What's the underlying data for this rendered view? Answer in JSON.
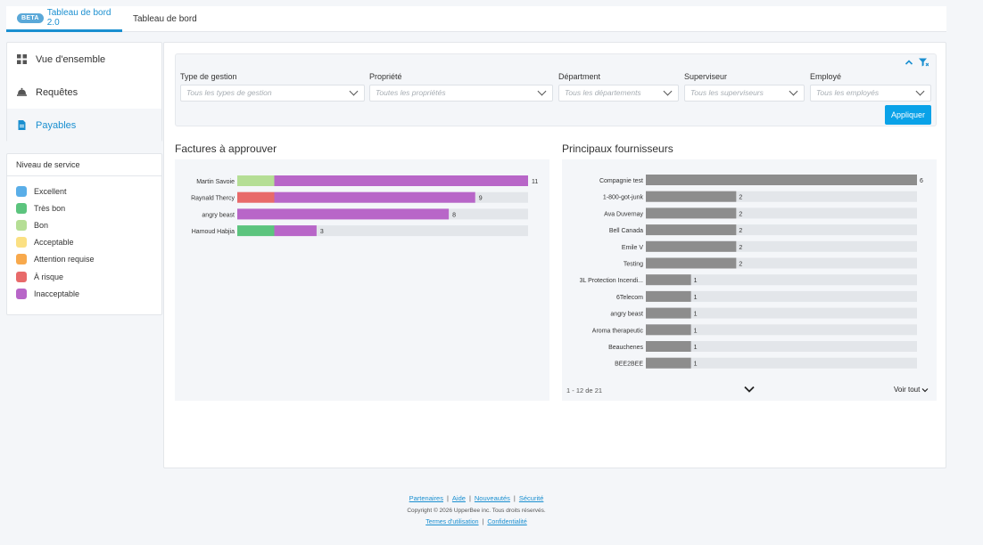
{
  "tabs": [
    {
      "badge": "BETA",
      "label": "Tableau de bord 2.0"
    },
    {
      "label": "Tableau de bord"
    }
  ],
  "nav": {
    "items": [
      {
        "label": "Vue d'ensemble",
        "icon": "grid-icon"
      },
      {
        "label": "Requêtes",
        "icon": "bell-icon"
      },
      {
        "label": "Payables",
        "icon": "document-icon"
      }
    ]
  },
  "service": {
    "title": "Niveau de service",
    "levels": [
      {
        "label": "Excellent",
        "color": "#5aaee8"
      },
      {
        "label": "Très bon",
        "color": "#5cc47e"
      },
      {
        "label": "Bon",
        "color": "#b5de95"
      },
      {
        "label": "Acceptable",
        "color": "#fbe083"
      },
      {
        "label": "Attention requise",
        "color": "#f8a94c"
      },
      {
        "label": "À risque",
        "color": "#e86a6a"
      },
      {
        "label": "Inacceptable",
        "color": "#b866c8"
      }
    ]
  },
  "filters": {
    "groups": [
      {
        "label": "Type de gestion",
        "placeholder": "Tous les types de gestion"
      },
      {
        "label": "Propriété",
        "placeholder": "Toutes les propriétés"
      },
      {
        "label": "Départment",
        "placeholder": "Tous les départements"
      },
      {
        "label": "Superviseur",
        "placeholder": "Tous les superviseurs"
      },
      {
        "label": "Employé",
        "placeholder": "Tous les employés"
      }
    ],
    "apply_label": "Appliquer"
  },
  "chart_data": [
    {
      "type": "bar",
      "orientation": "horizontal",
      "stacked": true,
      "title": "Factures à approuver",
      "categories": [
        "Martin Savoie",
        "Raynald Thercy",
        "angry beast",
        "Hamoud Habjia"
      ],
      "totals": [
        11,
        9,
        8,
        3
      ],
      "series": [
        {
          "name": "Bon",
          "color": "#b5de95",
          "values": [
            1.4,
            0,
            0,
            0
          ]
        },
        {
          "name": "À risque",
          "color": "#e86a6a",
          "values": [
            0,
            1.4,
            0,
            0
          ]
        },
        {
          "name": "Très bon",
          "color": "#5cc47e",
          "values": [
            0,
            0,
            0,
            1.4
          ]
        },
        {
          "name": "Inacceptable",
          "color": "#b866c8",
          "values": [
            9.6,
            7.6,
            8,
            1.6
          ]
        }
      ],
      "xlim": [
        0,
        11
      ]
    },
    {
      "type": "bar",
      "orientation": "horizontal",
      "title": "Principaux fournisseurs",
      "categories": [
        "Compagnie test",
        "1-800-got-junk",
        "Ava Duvernay",
        "Bell Canada",
        "Emile V",
        "Testing",
        "3L Protection Incendi...",
        "6Telecom",
        "angry beast",
        "Aroma therapeutic",
        "Beauchenes",
        "BEE2BEE"
      ],
      "values": [
        6,
        2,
        2,
        2,
        2,
        2,
        1,
        1,
        1,
        1,
        1,
        1
      ],
      "xlim": [
        0,
        6
      ],
      "bar_color": "#8d8d8d",
      "pagination": "1 - 12 de 21",
      "see_all": "Voir tout"
    }
  ],
  "footer": {
    "links": [
      "Partenaires",
      "Aide",
      "Nouveautés",
      "Sécurité"
    ],
    "copyright": "Copyright © 2026 UpperBee inc. Tous droits réservés.",
    "links2": [
      "Termes d'utilisation",
      "Confidentialité"
    ]
  }
}
